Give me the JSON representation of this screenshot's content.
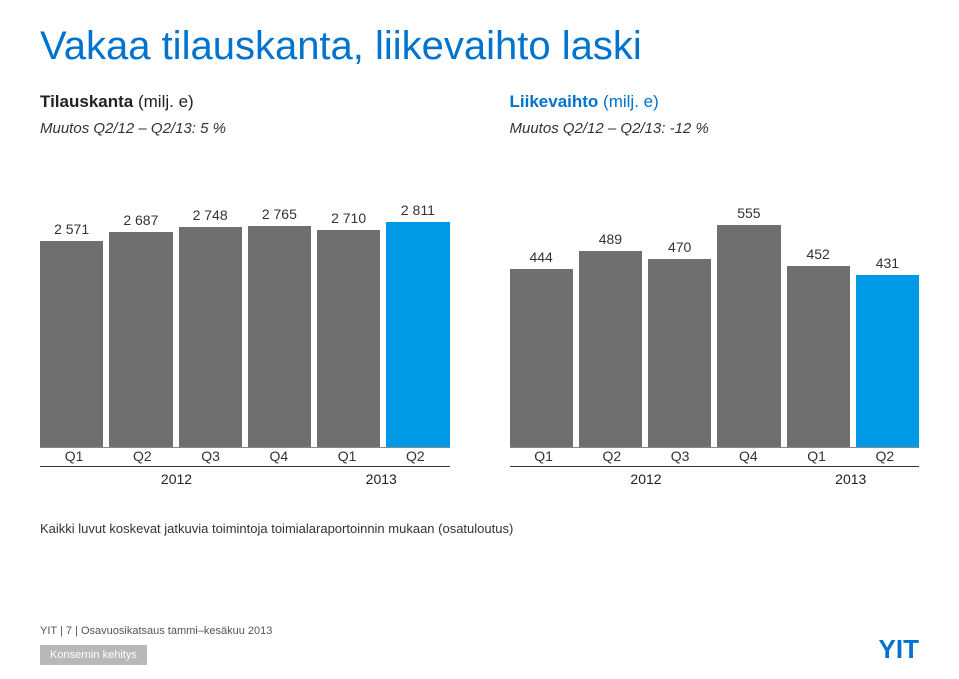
{
  "title": "Vakaa tilauskanta, liikevaihto laski",
  "left": {
    "label": "Tilauskanta",
    "unit": "(milj. e)",
    "subline": "Muutos Q2/12 – Q2/13: 5 %",
    "chart": {
      "type": "bar",
      "categories": [
        "Q1",
        "Q2",
        "Q3",
        "Q4",
        "Q1",
        "Q2"
      ],
      "values": [
        2571,
        2687,
        2748,
        2765,
        2710,
        2811
      ],
      "labels": [
        "2 571",
        "2 687",
        "2 748",
        "2 765",
        "2 710",
        "2 811"
      ],
      "colors": [
        "#6f6f6f",
        "#6f6f6f",
        "#6f6f6f",
        "#6f6f6f",
        "#6f6f6f",
        "#0099e5"
      ],
      "ylim": [
        0,
        3000
      ],
      "bg": "#ffffff",
      "label_fontsize": 14,
      "groups": [
        {
          "label": "2012",
          "span": 4
        },
        {
          "label": "2013",
          "span": 2
        }
      ]
    }
  },
  "right": {
    "label": "Liikevaihto",
    "unit": "(milj. e)",
    "subline": "Muutos Q2/12 – Q2/13: -12 %",
    "chart": {
      "type": "bar",
      "categories": [
        "Q1",
        "Q2",
        "Q3",
        "Q4",
        "Q1",
        "Q2"
      ],
      "values": [
        444,
        489,
        470,
        555,
        452,
        431
      ],
      "labels": [
        "444",
        "489",
        "470",
        "555",
        "452",
        "431"
      ],
      "colors": [
        "#6f6f6f",
        "#6f6f6f",
        "#6f6f6f",
        "#6f6f6f",
        "#6f6f6f",
        "#0099e5"
      ],
      "ylim": [
        0,
        600
      ],
      "bg": "#ffffff",
      "label_fontsize": 14,
      "groups": [
        {
          "label": "2012",
          "span": 4
        },
        {
          "label": "2013",
          "span": 2
        }
      ]
    }
  },
  "footnote": "Kaikki luvut koskevat jatkuvia toimintoja toimialaraportoinnin mukaan (osatuloutus)",
  "footer": {
    "text": "YIT  |  7  |  Osavuosikatsaus  tammi–kesäkuu 2013",
    "crumb": "Konsernin kehitys",
    "logo": "YIT"
  }
}
